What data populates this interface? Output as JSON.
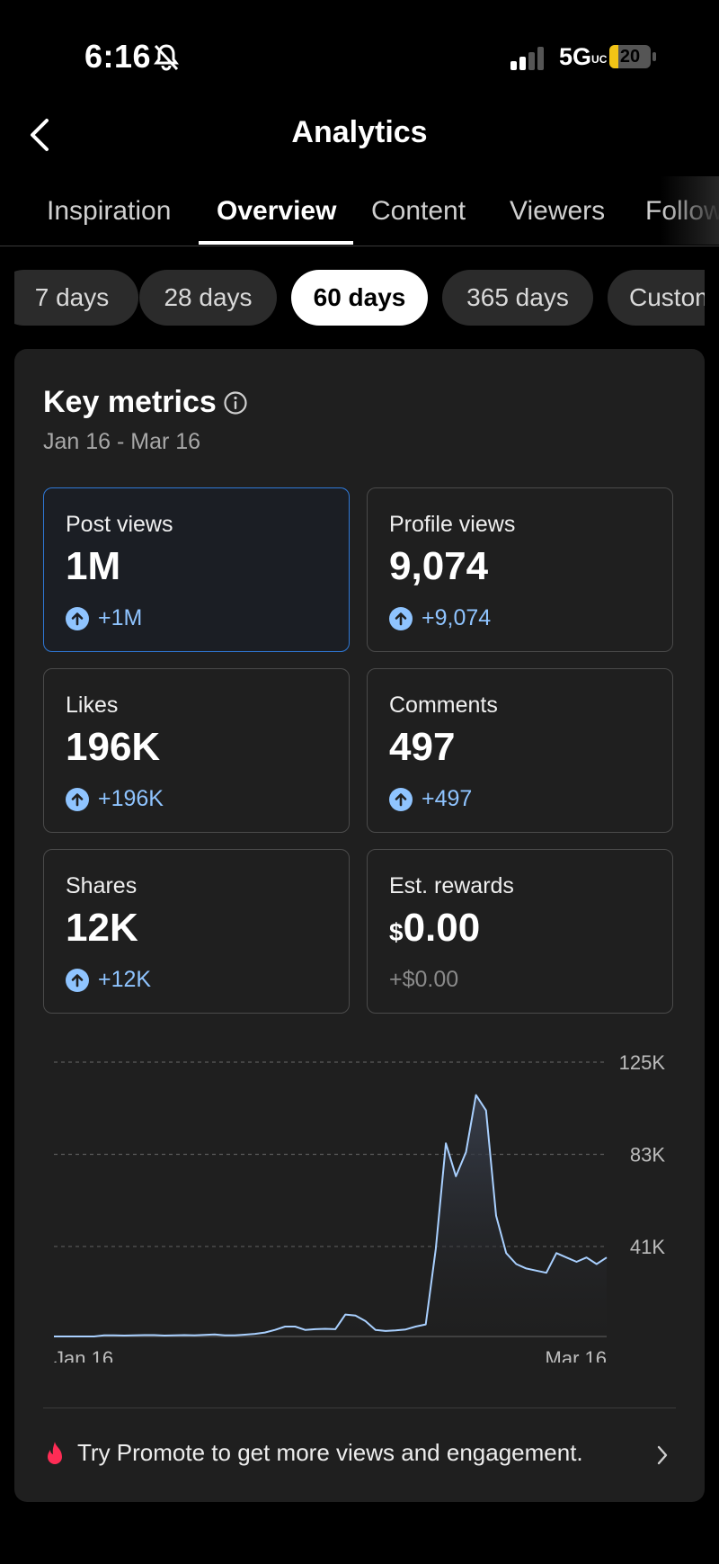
{
  "status_bar": {
    "time": "6:16",
    "network": "5G",
    "network_sub": "UC",
    "battery": "20"
  },
  "header": {
    "title": "Analytics"
  },
  "tabs": [
    "Inspiration",
    "Overview",
    "Content",
    "Viewers",
    "Follow"
  ],
  "ranges": [
    "7 days",
    "28 days",
    "60 days",
    "365 days",
    "Custom"
  ],
  "key_metrics": {
    "title": "Key metrics",
    "date_range": "Jan 16 - Mar 16"
  },
  "metrics": [
    {
      "label": "Post views",
      "value": "1M",
      "delta": "+1M"
    },
    {
      "label": "Profile views",
      "value": "9,074",
      "delta": "+9,074"
    },
    {
      "label": "Likes",
      "value": "196K",
      "delta": "+196K"
    },
    {
      "label": "Comments",
      "value": "497",
      "delta": "+497"
    },
    {
      "label": "Shares",
      "value": "12K",
      "delta": "+12K"
    },
    {
      "label": "Est. rewards",
      "currency": "$",
      "value": "0.00",
      "delta": "+$0.00"
    }
  ],
  "colors": {
    "accent": "#8fc4ff",
    "selected_border": "#2f78d6",
    "line": "#a9d0ff"
  },
  "chart_data": {
    "type": "area",
    "x_labels": [
      "Jan 16",
      "Mar 16"
    ],
    "y_ticks": [
      "125K",
      "83K",
      "41K"
    ],
    "ylim": [
      0,
      125000
    ],
    "grid": true,
    "values": [
      0,
      0,
      0,
      0,
      0,
      500,
      500,
      400,
      500,
      600,
      600,
      400,
      500,
      600,
      500,
      700,
      900,
      500,
      500,
      800,
      1200,
      1800,
      3000,
      4500,
      4500,
      3000,
      3300,
      3500,
      3300,
      10000,
      9500,
      7000,
      3000,
      2500,
      2800,
      3200,
      4500,
      5500,
      40000,
      88000,
      73000,
      84000,
      110000,
      103000,
      55000,
      38000,
      33000,
      31000,
      30000,
      29000,
      38000,
      36000,
      34000,
      36000,
      33000,
      36000
    ]
  },
  "promo": {
    "text": "Try Promote to get more views and engagement."
  }
}
